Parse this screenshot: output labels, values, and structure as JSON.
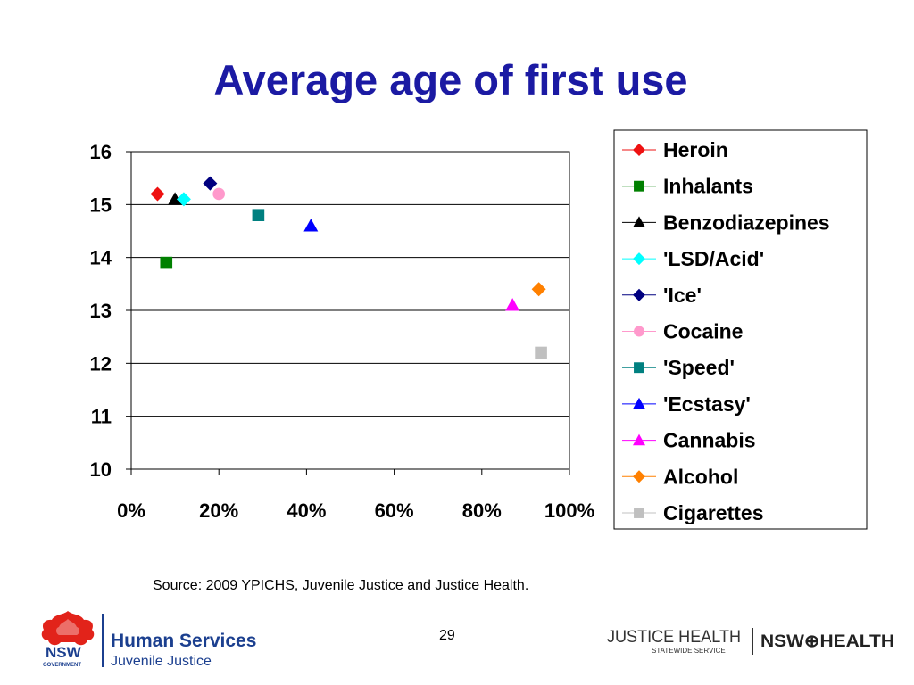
{
  "slide": {
    "title": "Average age of first use",
    "source": "Source: 2009 YPICHS, Juvenile Justice and Justice Health.",
    "page_number": "29"
  },
  "logos": {
    "left_org_line1": "Human Services",
    "left_org_line2": "Juvenile Justice",
    "left_mark_text": "NSW",
    "left_mark_sub": "GOVERNMENT",
    "right_org1": "JUSTICE HEALTH",
    "right_org1_sub": "STATEWIDE SERVICE",
    "right_org2": "NSW⊕HEALTH"
  },
  "chart_data": {
    "type": "scatter",
    "title": "Average age of first use",
    "xlabel": "",
    "ylabel": "",
    "xlim": [
      0,
      100
    ],
    "ylim": [
      10,
      16
    ],
    "x_ticks": [
      "0%",
      "20%",
      "40%",
      "60%",
      "80%",
      "100%"
    ],
    "y_ticks": [
      "10",
      "11",
      "12",
      "13",
      "14",
      "15",
      "16"
    ],
    "grid": "horizontal",
    "legend_position": "right",
    "series": [
      {
        "name": "Heroin",
        "x": 6,
        "y": 15.2,
        "marker": "diamond",
        "color": "#ee1111"
      },
      {
        "name": "Inhalants",
        "x": 8,
        "y": 13.9,
        "marker": "square",
        "color": "#008000"
      },
      {
        "name": "Benzodiazepines",
        "x": 10,
        "y": 15.1,
        "marker": "triangle",
        "color": "#000000"
      },
      {
        "name": "'LSD/Acid'",
        "x": 12,
        "y": 15.1,
        "marker": "diamond",
        "color": "#00ffff"
      },
      {
        "name": "'Ice'",
        "x": 18,
        "y": 15.4,
        "marker": "diamond",
        "color": "#000080"
      },
      {
        "name": "Cocaine",
        "x": 20,
        "y": 15.2,
        "marker": "circle",
        "color": "#ff99cc"
      },
      {
        "name": "'Speed'",
        "x": 29,
        "y": 14.8,
        "marker": "square",
        "color": "#008080"
      },
      {
        "name": "'Ecstasy'",
        "x": 41,
        "y": 14.6,
        "marker": "triangle",
        "color": "#0000ff"
      },
      {
        "name": "Cannabis",
        "x": 87,
        "y": 13.1,
        "marker": "triangle",
        "color": "#ff00ff"
      },
      {
        "name": "Alcohol",
        "x": 93,
        "y": 13.4,
        "marker": "diamond",
        "color": "#ff8000"
      },
      {
        "name": "Cigarettes",
        "x": 93.5,
        "y": 12.2,
        "marker": "square",
        "color": "#c0c0c0"
      }
    ]
  }
}
